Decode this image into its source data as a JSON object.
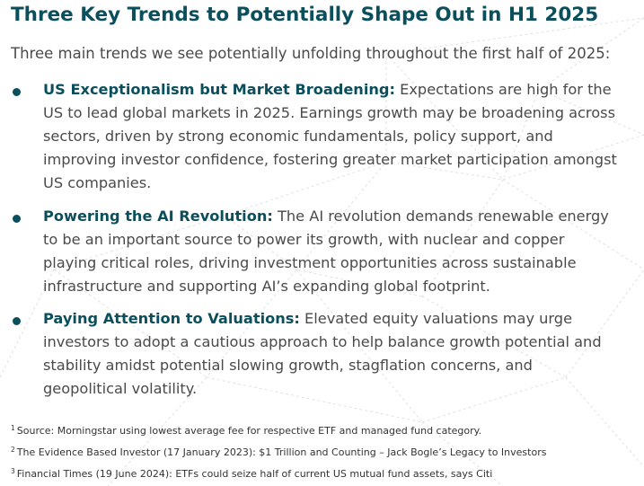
{
  "title": "Three Key Trends to Potentially Shape Out in H1 2025",
  "intro": "Three main trends we see potentially unfolding throughout the first half of 2025:",
  "trends": [
    {
      "heading": "US Exceptionalism but Market Broadening:",
      "text": " Expectations are high for the US to lead global markets in 2025. Earnings growth may be broadening across sectors, driven by strong economic fundamentals, policy support, and improving investor confidence, fostering greater market participation amongst US companies."
    },
    {
      "heading": "Powering the AI Revolution:",
      "text": " The AI revolution demands renewable energy to be an important source to power its growth, with nuclear and copper playing critical roles, driving investment opportunities across sustainable infrastructure and supporting AI’s expanding global footprint."
    },
    {
      "heading": "Paying Attention to Valuations:",
      "text": " Elevated equity valuations may urge investors to adopt a cautious approach to help balance growth potential and stability amidst potential slowing growth, stagflation concerns, and geopolitical volatility."
    }
  ],
  "footnotes": [
    {
      "num": "1",
      "text": "Source: Morningstar using lowest average fee for respective ETF and managed fund category."
    },
    {
      "num": "2",
      "text": "The Evidence Based Investor (17 January 2023): $1 Trillion and Counting – Jack Bogle’s Legacy to Investors"
    },
    {
      "num": "3",
      "text": "Financial Times (19 June 2024): ETFs could seize half of current US mutual fund assets, says Citi"
    }
  ],
  "colors": {
    "accent": "#0b4f5c",
    "body_text": "#4a4a4a",
    "background_lines": "#dfe4e6"
  }
}
